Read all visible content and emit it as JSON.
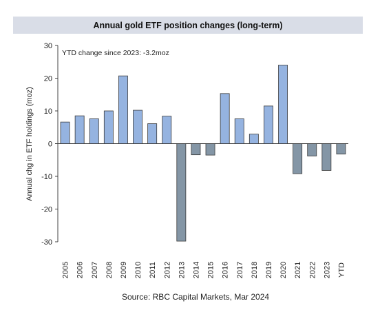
{
  "chart_data": {
    "type": "bar",
    "title": "Annual gold ETF position changes (long-term)",
    "ylabel": "Annual chg in ETF holdings (moz)",
    "xlabel": "",
    "ylim": [
      -30,
      30
    ],
    "yticks": [
      30,
      20,
      10,
      0,
      -10,
      -20,
      -30
    ],
    "categories": [
      "2005",
      "2006",
      "2007",
      "2008",
      "2009",
      "2010",
      "2011",
      "2012",
      "2013",
      "2014",
      "2015",
      "2016",
      "2017",
      "2018",
      "2019",
      "2020",
      "2021",
      "2022",
      "2023",
      "YTD"
    ],
    "values": [
      6.6,
      8.5,
      7.6,
      10.0,
      20.7,
      10.2,
      6.1,
      8.4,
      -29.8,
      -3.4,
      -3.5,
      15.3,
      7.6,
      2.9,
      11.5,
      24.0,
      -9.2,
      -3.8,
      -8.2,
      -3.2
    ],
    "annotation": "YTD change since 2023:  -3.2moz",
    "source": "Source: RBC Capital Markets, Mar 2024",
    "colors": {
      "positive": "#95b3e0",
      "negative": "#8496a6",
      "edge": "#3a3a3a",
      "title_bg": "#d9dde7"
    },
    "grid": false
  }
}
